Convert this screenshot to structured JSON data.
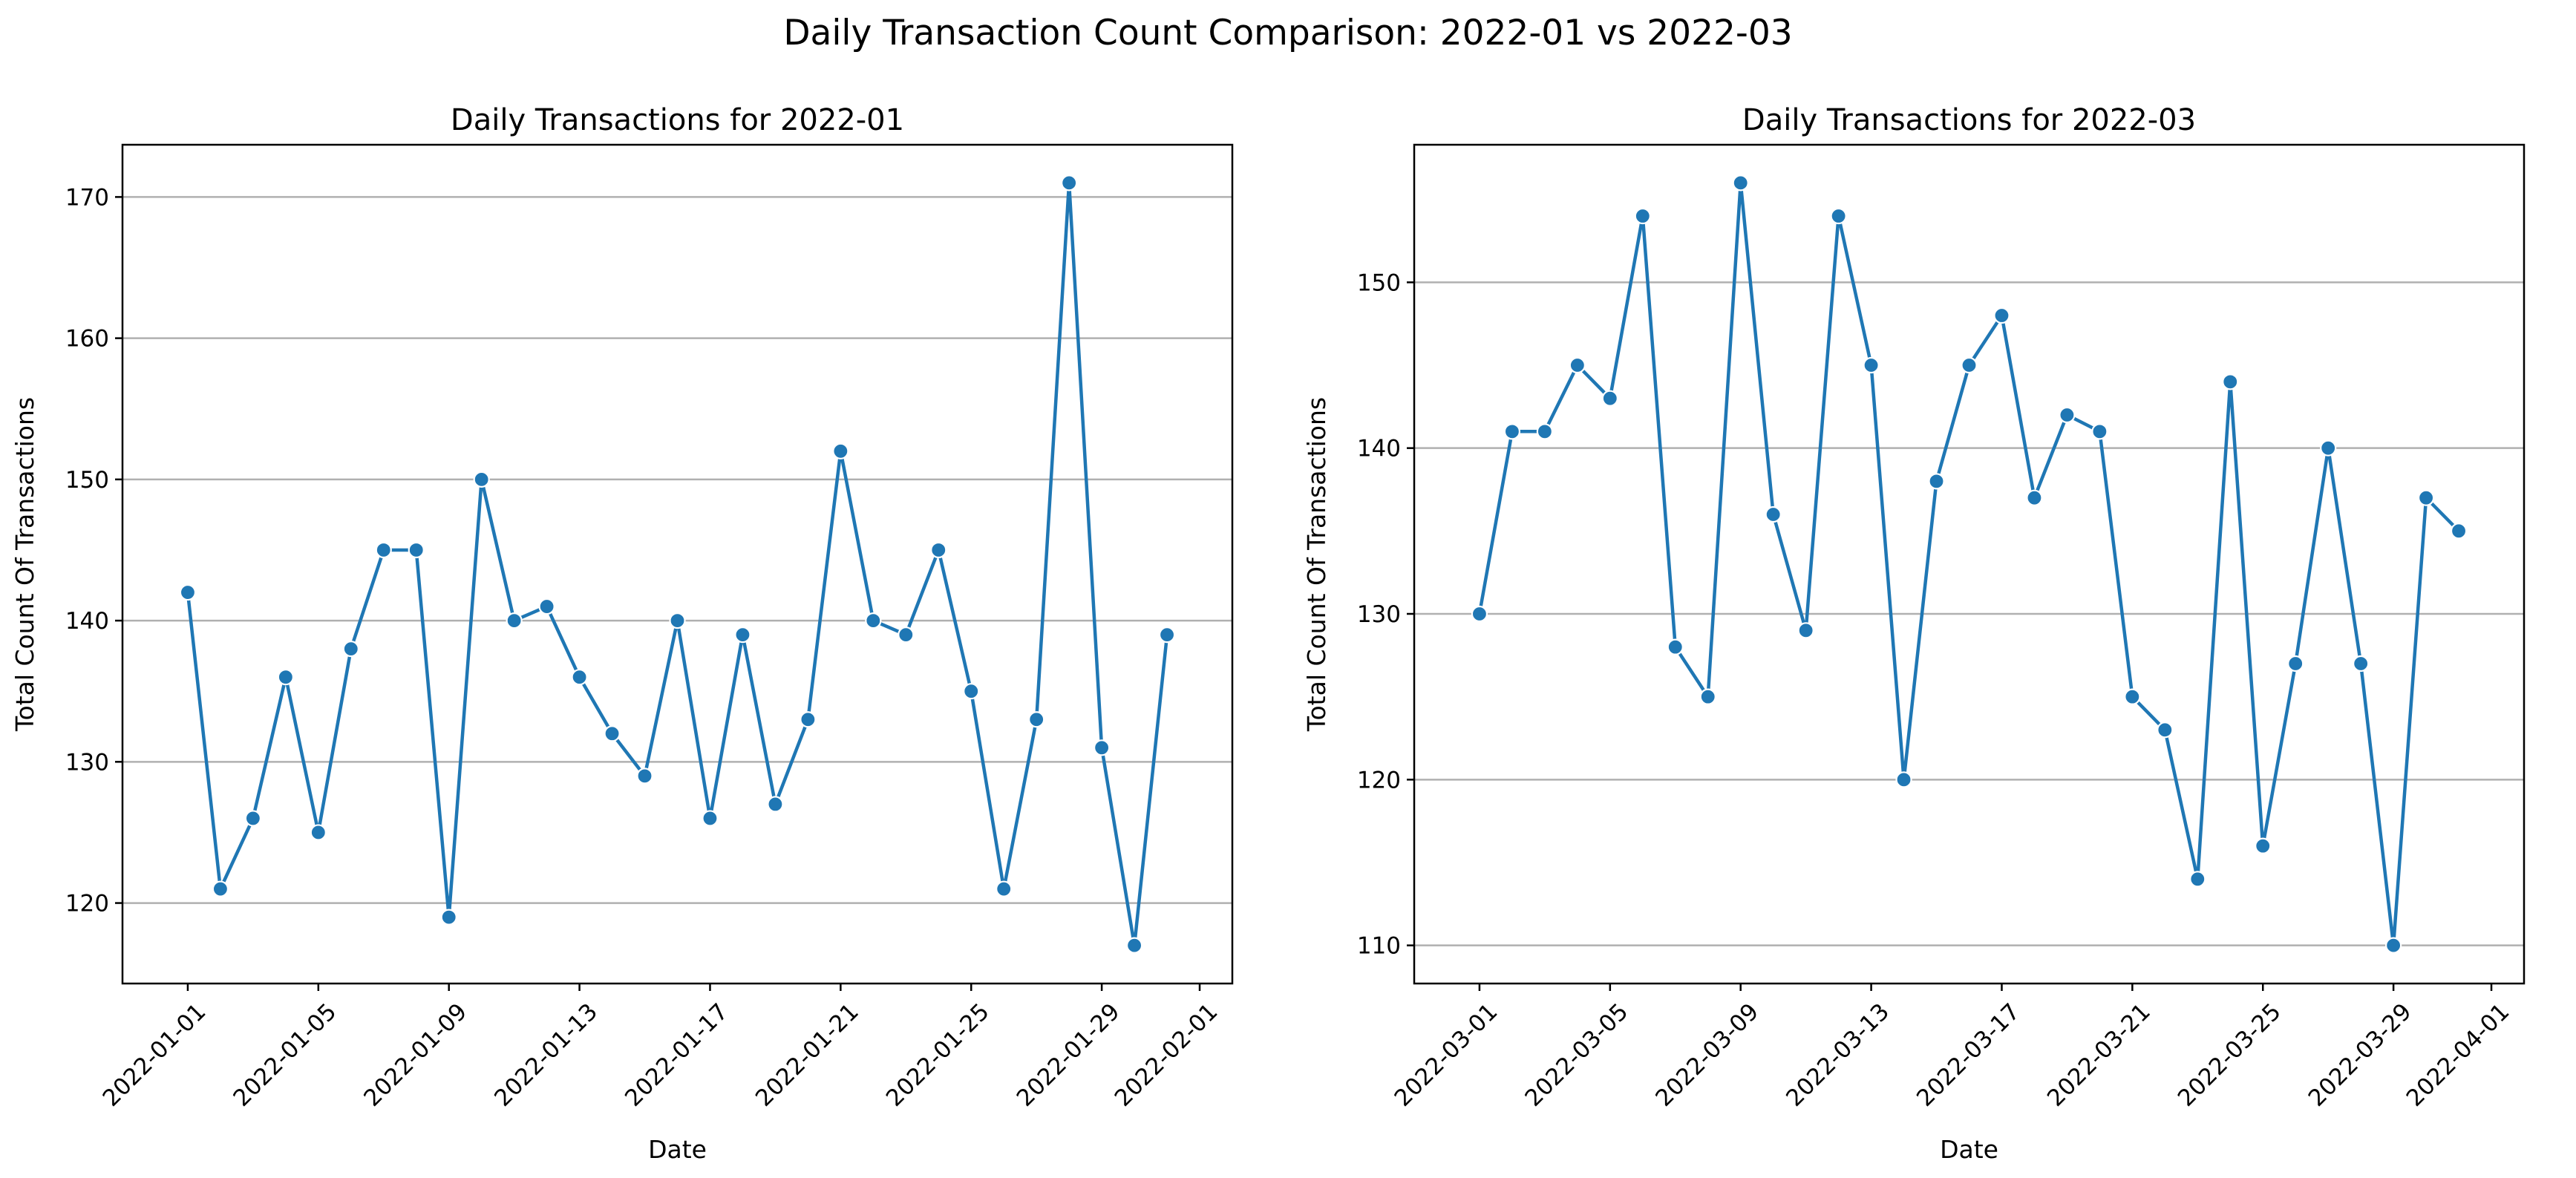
{
  "figure": {
    "suptitle": "Daily Transaction Count Comparison: 2022-01 vs 2022-03",
    "line_color": "#1f77b4"
  },
  "chart_data": [
    {
      "type": "line",
      "title": "Daily Transactions for 2022-01",
      "xlabel": "Date",
      "ylabel": "Total Count Of Transactions",
      "grid": "y-axis",
      "xlim": [
        "2021-12-30",
        "2022-02-02"
      ],
      "ylim": [
        114.3,
        173.7
      ],
      "yticks": [
        120,
        130,
        140,
        150,
        160,
        170
      ],
      "xticks": [
        "2022-01-01",
        "2022-01-05",
        "2022-01-09",
        "2022-01-13",
        "2022-01-17",
        "2022-01-21",
        "2022-01-25",
        "2022-01-29",
        "2022-02-01"
      ],
      "x": [
        "2022-01-01",
        "2022-01-02",
        "2022-01-03",
        "2022-01-04",
        "2022-01-05",
        "2022-01-06",
        "2022-01-07",
        "2022-01-08",
        "2022-01-09",
        "2022-01-10",
        "2022-01-11",
        "2022-01-12",
        "2022-01-13",
        "2022-01-14",
        "2022-01-15",
        "2022-01-16",
        "2022-01-17",
        "2022-01-18",
        "2022-01-19",
        "2022-01-20",
        "2022-01-21",
        "2022-01-22",
        "2022-01-23",
        "2022-01-24",
        "2022-01-25",
        "2022-01-26",
        "2022-01-27",
        "2022-01-28",
        "2022-01-29",
        "2022-01-30",
        "2022-01-31"
      ],
      "values": [
        142,
        121,
        126,
        136,
        125,
        138,
        145,
        145,
        119,
        150,
        140,
        141,
        136,
        132,
        129,
        140,
        126,
        139,
        127,
        133,
        152,
        140,
        139,
        145,
        135,
        121,
        133,
        171,
        131,
        117,
        139
      ]
    },
    {
      "type": "line",
      "title": "Daily Transactions for 2022-03",
      "xlabel": "Date",
      "ylabel": "Total Count Of Transactions",
      "grid": "y-axis",
      "xlim": [
        "2022-02-27",
        "2022-04-02"
      ],
      "ylim": [
        107.7,
        158.3
      ],
      "yticks": [
        110,
        120,
        130,
        140,
        150
      ],
      "xticks": [
        "2022-03-01",
        "2022-03-05",
        "2022-03-09",
        "2022-03-13",
        "2022-03-17",
        "2022-03-21",
        "2022-03-25",
        "2022-03-29",
        "2022-04-01"
      ],
      "x": [
        "2022-03-01",
        "2022-03-02",
        "2022-03-03",
        "2022-03-04",
        "2022-03-05",
        "2022-03-06",
        "2022-03-07",
        "2022-03-08",
        "2022-03-09",
        "2022-03-10",
        "2022-03-11",
        "2022-03-12",
        "2022-03-13",
        "2022-03-14",
        "2022-03-15",
        "2022-03-16",
        "2022-03-17",
        "2022-03-18",
        "2022-03-19",
        "2022-03-20",
        "2022-03-21",
        "2022-03-22",
        "2022-03-23",
        "2022-03-24",
        "2022-03-25",
        "2022-03-26",
        "2022-03-27",
        "2022-03-28",
        "2022-03-29",
        "2022-03-30",
        "2022-03-31"
      ],
      "values": [
        130,
        141,
        141,
        145,
        143,
        154,
        128,
        125,
        156,
        136,
        129,
        154,
        145,
        120,
        138,
        145,
        148,
        137,
        142,
        141,
        125,
        123,
        114,
        144,
        116,
        127,
        140,
        127,
        110,
        137,
        135
      ]
    }
  ]
}
